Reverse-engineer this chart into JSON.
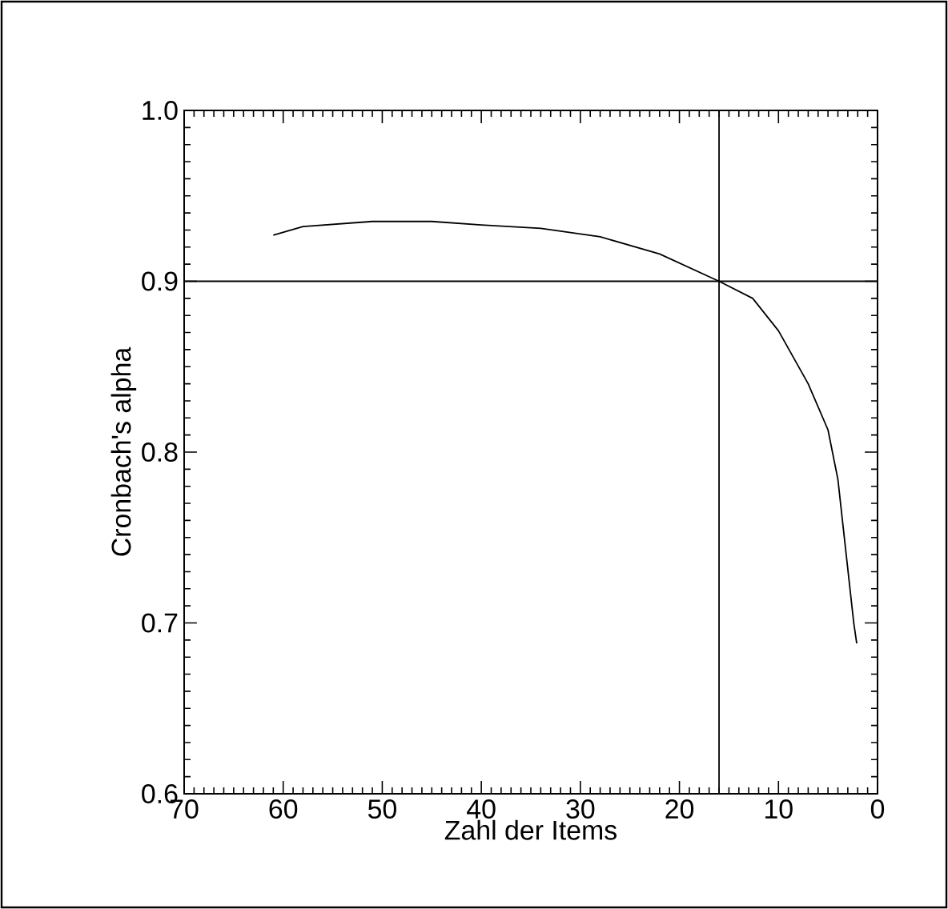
{
  "chart_data": {
    "type": "line",
    "xlabel": "Zahl der Items",
    "ylabel": "Cronbach's alpha",
    "xlim": [
      70,
      0
    ],
    "ylim": [
      0.6,
      1.0
    ],
    "xticks": [
      70,
      60,
      50,
      40,
      30,
      20,
      10,
      0
    ],
    "yticks": [
      0.6,
      0.7,
      0.8,
      0.9,
      {
        "value": 1.0,
        "label": "1.0"
      }
    ],
    "series": [
      {
        "color": "#000000",
        "x": [
          61,
          58,
          51,
          45,
          40,
          34,
          28,
          22,
          16,
          12.6,
          10,
          7,
          5,
          4,
          2.4,
          2.1
        ],
        "values": [
          0.927,
          0.932,
          0.935,
          0.935,
          0.933,
          0.931,
          0.926,
          0.916,
          0.9,
          0.89,
          0.871,
          0.84,
          0.813,
          0.784,
          0.7,
          0.688
        ]
      }
    ],
    "ref_lines": [
      {
        "axis": "y",
        "value": 0.9
      },
      {
        "axis": "x",
        "value": 16
      }
    ]
  }
}
